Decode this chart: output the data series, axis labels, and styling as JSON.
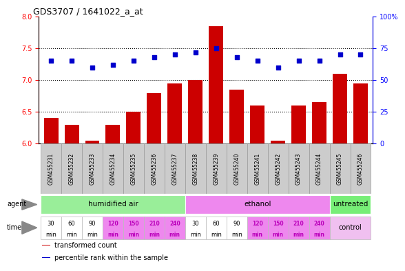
{
  "title": "GDS3707 / 1641022_a_at",
  "samples": [
    "GSM455231",
    "GSM455232",
    "GSM455233",
    "GSM455234",
    "GSM455235",
    "GSM455236",
    "GSM455237",
    "GSM455238",
    "GSM455239",
    "GSM455240",
    "GSM455241",
    "GSM455242",
    "GSM455243",
    "GSM455244",
    "GSM455245",
    "GSM455246"
  ],
  "transformed_count": [
    6.4,
    6.3,
    6.05,
    6.3,
    6.5,
    6.8,
    6.95,
    7.0,
    7.85,
    6.85,
    6.6,
    6.05,
    6.6,
    6.65,
    7.1,
    6.95
  ],
  "percentile_rank": [
    65,
    65,
    60,
    62,
    65,
    68,
    70,
    72,
    75,
    68,
    65,
    60,
    65,
    65,
    70,
    70
  ],
  "ylim_left": [
    6.0,
    8.0
  ],
  "ylim_right": [
    0,
    100
  ],
  "yticks_left": [
    6.0,
    6.5,
    7.0,
    7.5,
    8.0
  ],
  "yticks_right": [
    0,
    25,
    50,
    75,
    100
  ],
  "ytick_right_labels": [
    "0",
    "25",
    "50",
    "75",
    "100%"
  ],
  "dotted_lines": [
    6.5,
    7.0,
    7.5
  ],
  "bar_color": "#cc0000",
  "dot_color": "#0000cc",
  "dot_size": 20,
  "agent_groups": [
    {
      "label": "humidified air",
      "start": 0,
      "end": 7,
      "color": "#99ee99"
    },
    {
      "label": "ethanol",
      "start": 7,
      "end": 14,
      "color": "#ee88ee"
    },
    {
      "label": "untreated",
      "start": 14,
      "end": 16,
      "color": "#77ee77"
    }
  ],
  "time_labels": [
    "30",
    "60",
    "90",
    "120",
    "150",
    "210",
    "240",
    "30",
    "60",
    "90",
    "120",
    "150",
    "210",
    "240"
  ],
  "time_white": [
    0,
    1,
    2,
    7,
    8,
    9
  ],
  "time_pink": [
    3,
    4,
    5,
    6,
    10,
    11,
    12,
    13
  ],
  "time_white_color": "#ffffff",
  "time_pink_color": "#ee88ee",
  "time_control_color": "#f0c0f0",
  "sample_bg_color": "#cccccc",
  "sample_border_color": "#999999",
  "legend_items": [
    {
      "color": "#cc0000",
      "label": "transformed count"
    },
    {
      "color": "#0000cc",
      "label": "percentile rank within the sample"
    }
  ]
}
